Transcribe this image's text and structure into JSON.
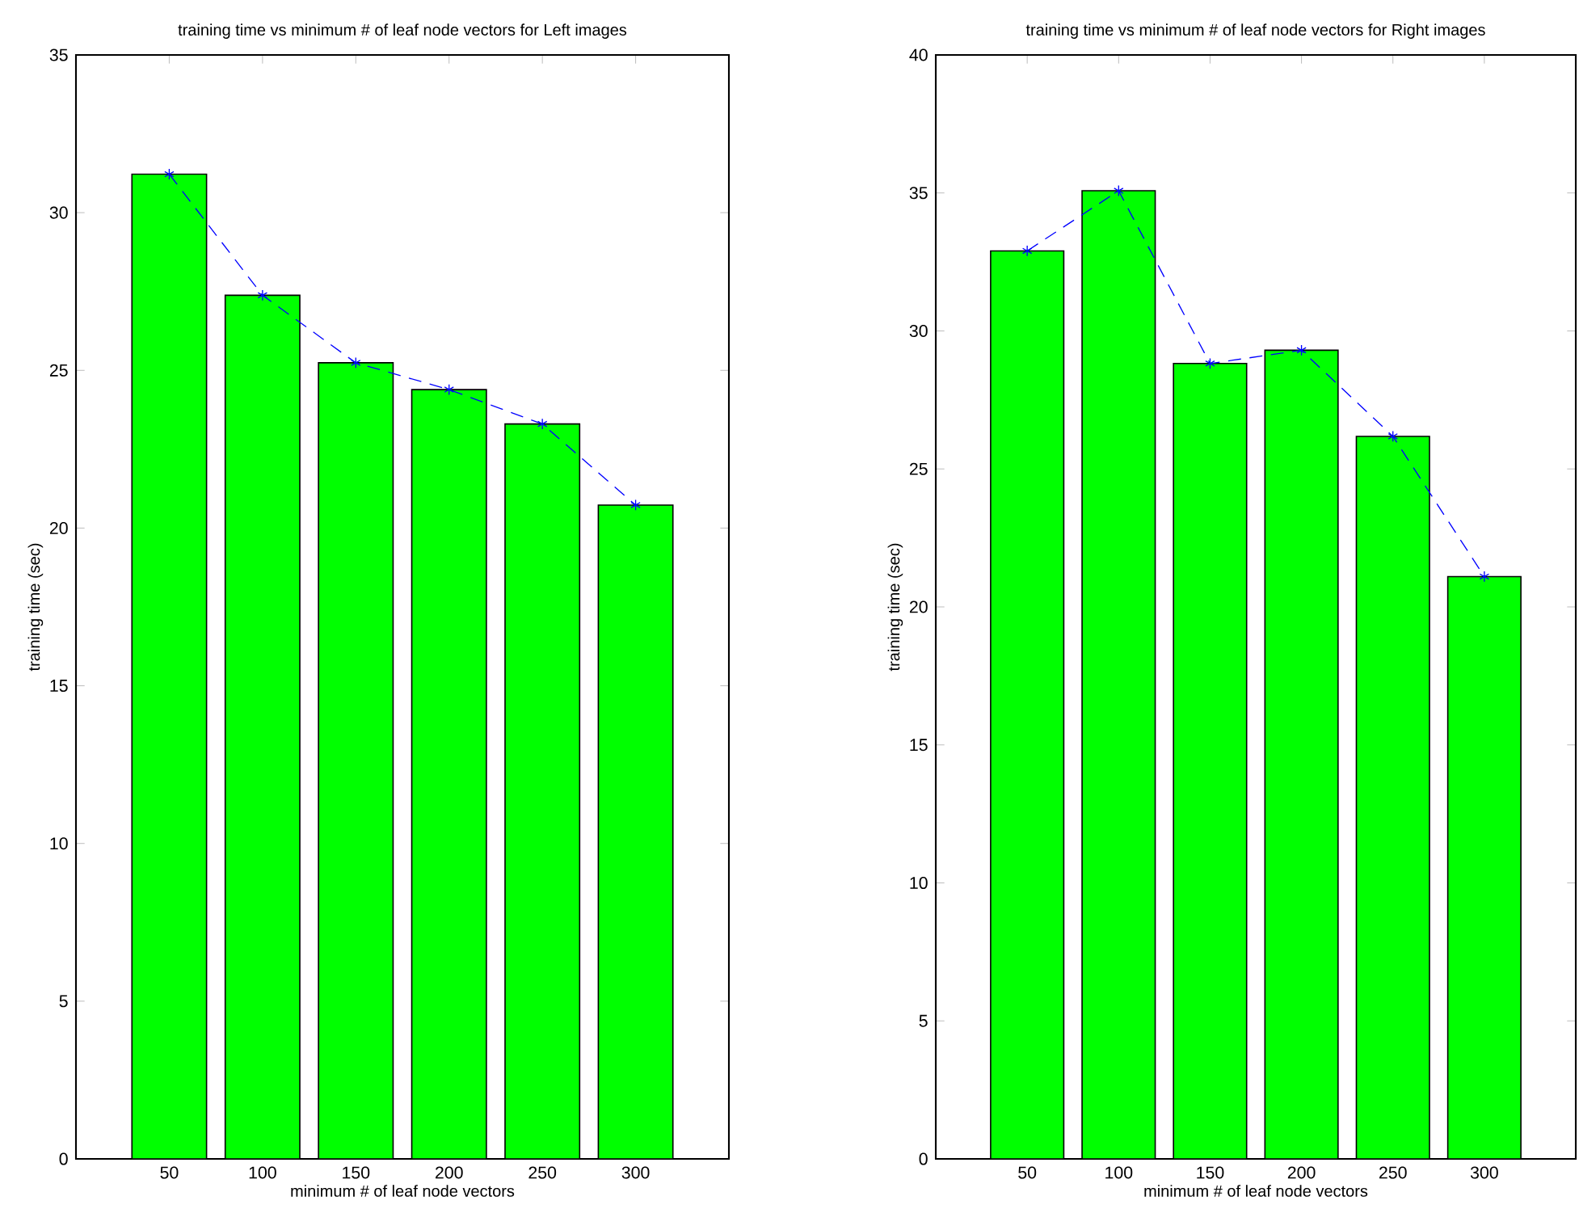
{
  "chart_data": [
    {
      "type": "bar",
      "title": "training time vs minimum # of leaf node vectors for Left images",
      "xlabel": "minimum # of leaf node vectors",
      "ylabel": "training time (sec)",
      "x": [
        50,
        100,
        150,
        200,
        250,
        300
      ],
      "xlim": [
        0,
        350
      ],
      "xticks": [
        50,
        100,
        150,
        200,
        250,
        300
      ],
      "ylim": [
        0,
        35
      ],
      "yticks": [
        0,
        5,
        10,
        15,
        20,
        25,
        30,
        35
      ],
      "series": [
        {
          "color": "#00ff00",
          "values": [
            31.22,
            27.38,
            25.24,
            24.39,
            23.3,
            20.73
          ]
        },
        {
          "type": "line",
          "color": "#0000ff",
          "line_style": "dashed",
          "marker": "cross",
          "values": [
            31.22,
            27.38,
            25.24,
            24.39,
            23.3,
            20.73
          ]
        }
      ]
    },
    {
      "type": "bar",
      "title": "training time vs minimum # of leaf node vectors for Right images",
      "xlabel": "minimum # of leaf node vectors",
      "ylabel": "training time (sec)",
      "x": [
        50,
        100,
        150,
        200,
        250,
        300
      ],
      "xlim": [
        0,
        350
      ],
      "xticks": [
        50,
        100,
        150,
        200,
        250,
        300
      ],
      "ylim": [
        0,
        40
      ],
      "yticks": [
        0,
        5,
        10,
        15,
        20,
        25,
        30,
        35,
        40
      ],
      "series": [
        {
          "color": "#00ff00",
          "values": [
            32.9,
            35.08,
            28.82,
            29.3,
            26.18,
            21.1
          ]
        },
        {
          "type": "line",
          "color": "#0000ff",
          "line_style": "dashed",
          "marker": "cross",
          "values": [
            32.9,
            35.08,
            28.82,
            29.3,
            26.18,
            21.1
          ]
        }
      ]
    }
  ]
}
